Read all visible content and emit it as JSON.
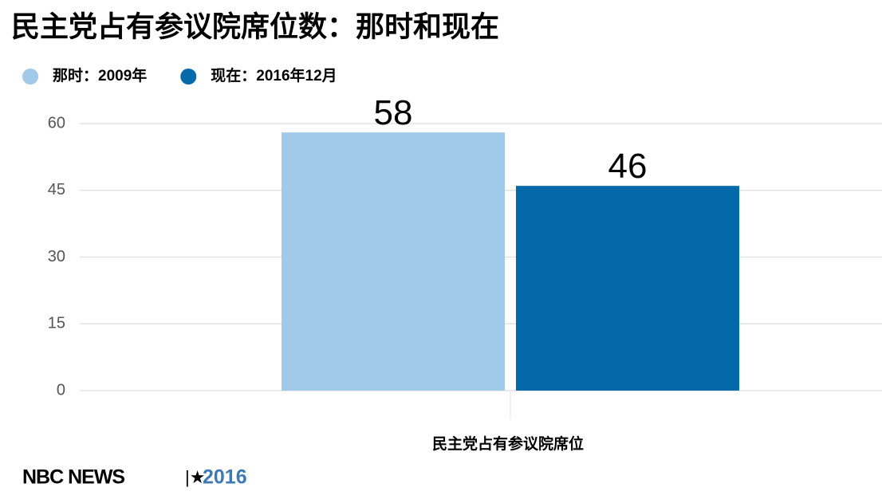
{
  "chart_data": {
    "type": "bar",
    "title": "民主党占有参议院席位数：那时和现在",
    "categories": [
      "民主党占有参议院席位"
    ],
    "series": [
      {
        "name": "那时：2009年",
        "color": "#a1c9e8",
        "values": [
          58
        ]
      },
      {
        "name": "现在：2016年12月",
        "color": "#0369a9",
        "values": [
          46
        ]
      }
    ],
    "ylim": [
      0,
      60
    ],
    "yticks": [
      0,
      15,
      30,
      45,
      60
    ],
    "grid": true,
    "source": "NBC NEWS",
    "source_year": "2016"
  }
}
